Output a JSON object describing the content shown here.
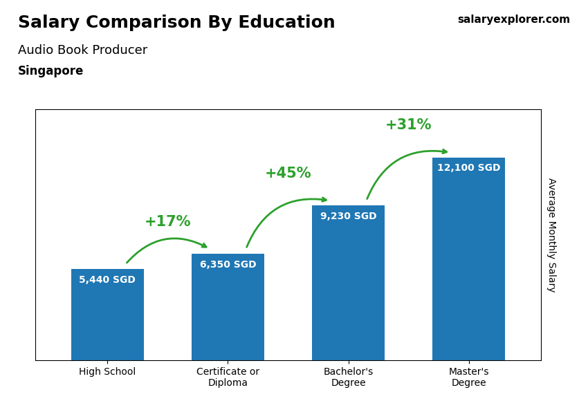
{
  "chart_data": {
    "type": "bar",
    "title": "Salary Comparison By Education",
    "subtitle": "Audio Book Producer",
    "annotations": [
      "Singapore",
      "salaryexplorer.com"
    ],
    "ylabel": "Average Monthly Salary",
    "categories": [
      "High School",
      "Certificate or\nDiploma",
      "Bachelor's\nDegree",
      "Master's\nDegree"
    ],
    "values": [
      5440,
      6350,
      9230,
      12100
    ],
    "value_labels": [
      "5,440 SGD",
      "6,350 SGD",
      "9,230 SGD",
      "12,100 SGD"
    ],
    "data_labels": true,
    "change_labels": [
      "+17%",
      "+45%",
      "+31%"
    ],
    "ylim": [
      0,
      15000
    ],
    "tick_labels": "x",
    "grid": false
  }
}
